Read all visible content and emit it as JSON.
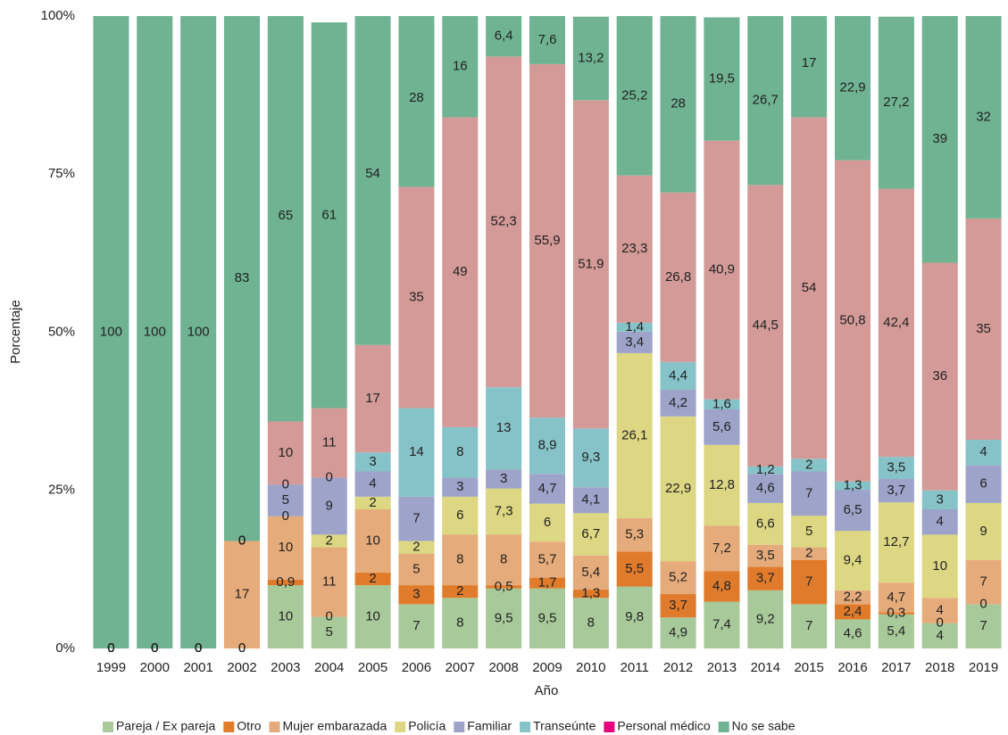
{
  "chart_data": {
    "type": "stacked_bar",
    "categories": [
      "1999",
      "2000",
      "2001",
      "2002",
      "2003",
      "2004",
      "2005",
      "2006",
      "2007",
      "2008",
      "2009",
      "2010",
      "2011",
      "2012",
      "2013",
      "2014",
      "2015",
      "2016",
      "2017",
      "2018",
      "2019"
    ],
    "series": [
      {
        "name": "Pareja / Ex pareja",
        "color": "#a8c99a",
        "values": [
          0,
          0,
          0,
          0,
          10,
          5,
          10,
          7,
          8,
          9.5,
          9.5,
          8,
          9.8,
          4.9,
          7.4,
          9.2,
          7,
          4.6,
          5.4,
          4,
          7
        ]
      },
      {
        "name": "Otro",
        "color": "#e07b2c",
        "values": [
          0,
          0,
          0,
          0,
          0.9,
          0,
          2,
          3,
          2,
          0.5,
          1.7,
          1.3,
          5.5,
          3.7,
          4.8,
          3.7,
          7,
          2.4,
          0.3,
          0,
          0
        ]
      },
      {
        "name": "Mujer embarazada",
        "color": "#e6ab7a",
        "values": [
          0,
          0,
          0,
          17,
          10,
          11,
          10,
          5,
          8,
          8,
          5.7,
          5.4,
          5.3,
          5.2,
          7.2,
          3.5,
          2,
          2.2,
          4.7,
          4,
          7
        ]
      },
      {
        "name": "Policía",
        "color": "#ddd682",
        "values": [
          0,
          0,
          0,
          0,
          0,
          2,
          2,
          2,
          6,
          7.3,
          6,
          6.7,
          26.1,
          22.9,
          12.8,
          6.6,
          5,
          9.4,
          12.7,
          10,
          9
        ]
      },
      {
        "name": "Familiar",
        "color": "#9da3c9",
        "values": [
          0,
          0,
          0,
          0,
          5,
          9,
          4,
          7,
          3,
          3,
          4.7,
          4.1,
          3.4,
          4.2,
          5.6,
          4.6,
          7,
          6.5,
          3.7,
          4,
          6
        ]
      },
      {
        "name": "Transeúnte",
        "color": "#86c3c8",
        "values": [
          0,
          0,
          0,
          0,
          0,
          0,
          3,
          14,
          8,
          13,
          8.9,
          9.3,
          1.4,
          4.4,
          1.6,
          1.2,
          2,
          1.3,
          3.5,
          3,
          4
        ]
      },
      {
        "name": "Personal médico",
        "color": "#d39a97",
        "legend_color": "#e6007e",
        "values": [
          0,
          0,
          0,
          0,
          10,
          11,
          17,
          35,
          49,
          52.3,
          55.9,
          51.9,
          23.3,
          26.8,
          40.9,
          44.5,
          54,
          50.8,
          42.4,
          36,
          35
        ]
      },
      {
        "name": "No se sabe",
        "color": "#6fb393",
        "values": [
          100,
          100,
          100,
          83,
          65,
          61,
          54,
          28,
          16,
          6.4,
          7.6,
          13.2,
          25.2,
          28,
          19.5,
          26.7,
          17,
          22.9,
          27.2,
          39,
          32
        ]
      }
    ],
    "value_labels": [
      [
        "0",
        "0",
        "0",
        "0",
        "10",
        "5",
        "10",
        "7",
        "8",
        "9,5",
        "9,5",
        "8",
        "9,8",
        "4,9",
        "7,4",
        "9,2",
        "7",
        "4,6",
        "5,4",
        "4",
        "7"
      ],
      [
        "0",
        "0",
        "0",
        "0",
        "0,9",
        "0",
        "2",
        "3",
        "2",
        "0,5",
        "1,7",
        "1,3",
        "5,5",
        "3,7",
        "4,8",
        "3,7",
        "7",
        "2,4",
        "0,3",
        "0",
        "0"
      ],
      [
        "0",
        "0",
        "0",
        "17",
        "10",
        "11",
        "10",
        "5",
        "8",
        "8",
        "5,7",
        "5,4",
        "5,3",
        "5,2",
        "7,2",
        "3,5",
        "2",
        "2,2",
        "4,7",
        "4",
        "7"
      ],
      [
        "0",
        "0",
        "0",
        "0",
        "0",
        "2",
        "2",
        "2",
        "6",
        "7,3",
        "6",
        "6,7",
        "26,1",
        "22,9",
        "12,8",
        "6,6",
        "5",
        "9,4",
        "12,7",
        "10",
        "9"
      ],
      [
        "0",
        "0",
        "0",
        "0",
        "5",
        "9",
        "4",
        "7",
        "3",
        "3",
        "4,7",
        "4,1",
        "3,4",
        "4,2",
        "5,6",
        "4,6",
        "7",
        "6,5",
        "3,7",
        "4",
        "6"
      ],
      [
        "0",
        "0",
        "0",
        "0",
        "0",
        "0",
        "3",
        "14",
        "8",
        "13",
        "8,9",
        "9,3",
        "1,4",
        "4,4",
        "1,6",
        "1,2",
        "2",
        "1,3",
        "3,5",
        "3",
        "4"
      ],
      [
        "0",
        "0",
        "0",
        "0",
        "10",
        "11",
        "17",
        "35",
        "49",
        "52,3",
        "55,9",
        "51,9",
        "23,3",
        "26,8",
        "40,9",
        "44,5",
        "54",
        "50,8",
        "42,4",
        "36",
        "35"
      ],
      [
        "100",
        "100",
        "100",
        "83",
        "65",
        "61",
        "54",
        "28",
        "16",
        "6,4",
        "7,6",
        "13,2",
        "25,2",
        "28",
        "19,5",
        "26,7",
        "17",
        "22,9",
        "27,2",
        "39",
        "32"
      ]
    ],
    "ylim": [
      0,
      100
    ],
    "yticks": [
      {
        "value": 0,
        "label": "0%"
      },
      {
        "value": 25,
        "label": "25%"
      },
      {
        "value": 50,
        "label": "50%"
      },
      {
        "value": 75,
        "label": "75%"
      },
      {
        "value": 100,
        "label": "100%"
      }
    ],
    "ylabel": "Porcentaje",
    "xlabel": "Año",
    "legend": "bottom",
    "grid": false
  }
}
